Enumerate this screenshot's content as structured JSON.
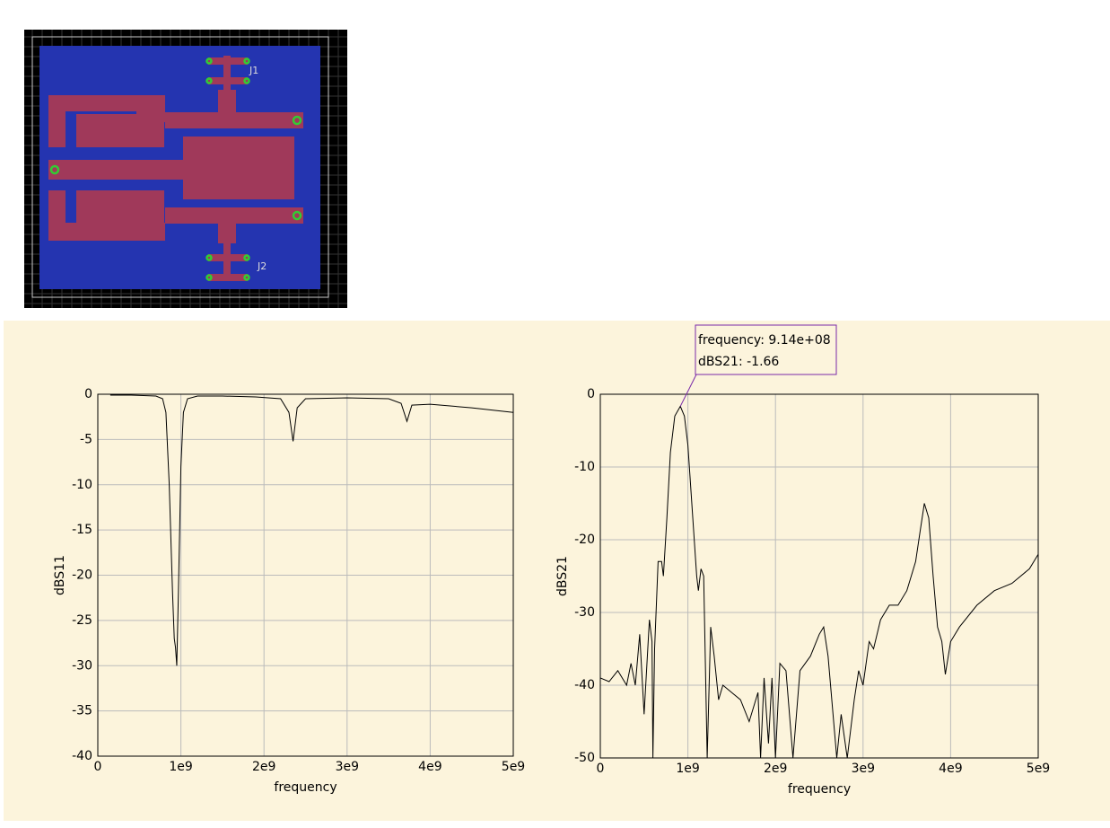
{
  "pcb": {
    "labels": [
      "J1",
      "J2"
    ]
  },
  "chart_data": [
    {
      "type": "line",
      "x_label": "frequency",
      "y_label": "dBS11",
      "xlim": [
        0,
        5000000000
      ],
      "ylim": [
        -40,
        0
      ],
      "xticks": [
        0,
        {
          "value": 1000000000,
          "label": "1e9"
        },
        {
          "value": 2000000000,
          "label": "2e9"
        },
        {
          "value": 3000000000,
          "label": "3e9"
        },
        {
          "value": 4000000000,
          "label": "4e9"
        },
        {
          "value": 5000000000,
          "label": "5e9"
        }
      ],
      "yticks": [
        0,
        -5,
        -10,
        -15,
        -20,
        -25,
        -30,
        -35,
        -40
      ],
      "grid": true,
      "series": [
        {
          "color": "#000000",
          "x": [
            150000000,
            400000000,
            700000000,
            780000000,
            820000000,
            860000000,
            900000000,
            920000000,
            935000000,
            950000000,
            970000000,
            1000000000,
            1030000000,
            1080000000,
            1200000000,
            1500000000,
            1900000000,
            2200000000,
            2300000000,
            2350000000,
            2400000000,
            2500000000,
            3000000000,
            3500000000,
            3650000000,
            3720000000,
            3780000000,
            4000000000,
            4500000000,
            5000000000
          ],
          "values": [
            -0.1,
            -0.1,
            -0.2,
            -0.5,
            -2,
            -10,
            -22,
            -27,
            -28,
            -30,
            -22,
            -8,
            -2,
            -0.5,
            -0.2,
            -0.2,
            -0.3,
            -0.5,
            -2,
            -5.2,
            -1.5,
            -0.5,
            -0.4,
            -0.5,
            -1,
            -3,
            -1.2,
            -1.1,
            -1.5,
            -2
          ]
        }
      ]
    },
    {
      "type": "line",
      "x_label": "frequency",
      "y_label": "dBS21",
      "xlim": [
        0,
        5000000000
      ],
      "ylim": [
        -50,
        0
      ],
      "xticks": [
        0,
        {
          "value": 1000000000,
          "label": "1e9"
        },
        {
          "value": 2000000000,
          "label": "2e9"
        },
        {
          "value": 3000000000,
          "label": "3e9"
        },
        {
          "value": 4000000000,
          "label": "4e9"
        },
        {
          "value": 5000000000,
          "label": "5e9"
        }
      ],
      "yticks": [
        0,
        -10,
        -20,
        -30,
        -40,
        -50
      ],
      "grid": true,
      "annotation": [
        "frequency: 9.14e+08",
        "dBS21: -1.66"
      ],
      "marker": {
        "x": 914000000,
        "y": -1.66
      },
      "series": [
        {
          "color": "#000000",
          "x": [
            0,
            100000000,
            200000000,
            300000000,
            350000000,
            400000000,
            450000000,
            500000000,
            560000000,
            590000000,
            600000000,
            620000000,
            660000000,
            700000000,
            720000000,
            760000000,
            800000000,
            850000000,
            914000000,
            960000000,
            1000000000,
            1050000000,
            1100000000,
            1120000000,
            1150000000,
            1180000000,
            1220000000,
            1260000000,
            1300000000,
            1350000000,
            1400000000,
            1500000000,
            1600000000,
            1700000000,
            1800000000,
            1830000000,
            1870000000,
            1920000000,
            1960000000,
            2000000000,
            2050000000,
            2120000000,
            2200000000,
            2280000000,
            2400000000,
            2500000000,
            2550000000,
            2600000000,
            2700000000,
            2750000000,
            2820000000,
            2900000000,
            2950000000,
            3000000000,
            3070000000,
            3120000000,
            3200000000,
            3300000000,
            3400000000,
            3500000000,
            3550000000,
            3600000000,
            3650000000,
            3700000000,
            3750000000,
            3800000000,
            3850000000,
            3900000000,
            3940000000,
            4000000000,
            4100000000,
            4300000000,
            4500000000,
            4700000000,
            4900000000,
            5000000000
          ],
          "values": [
            -39,
            -39.5,
            -38,
            -40,
            -37,
            -40,
            -33,
            -44,
            -31,
            -34,
            -50,
            -35,
            -23,
            -23,
            -25,
            -17,
            -8,
            -3,
            -1.66,
            -3,
            -7,
            -16,
            -25,
            -27,
            -24,
            -25,
            -50,
            -32,
            -36,
            -42,
            -40,
            -41,
            -42,
            -45,
            -41,
            -50,
            -39,
            -48,
            -39,
            -50,
            -37,
            -38,
            -50,
            -38,
            -36,
            -33,
            -32,
            -36,
            -50,
            -44,
            -50,
            -42,
            -38,
            -40,
            -34,
            -35,
            -31,
            -29,
            -29,
            -27,
            -25,
            -23,
            -19,
            -15,
            -17,
            -25,
            -32,
            -34,
            -38.5,
            -34,
            -32,
            -29,
            -27,
            -26,
            -24,
            -22
          ]
        }
      ]
    }
  ]
}
